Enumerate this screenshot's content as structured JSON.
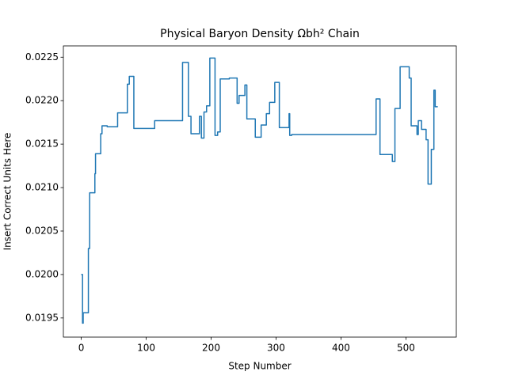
{
  "chart_data": {
    "type": "line",
    "title": "Physical Baryon Density Ωbh² Chain",
    "xlabel": "Step Number",
    "ylabel": "Insert Correct Units Here",
    "color": "#1f77b4",
    "x": [
      0,
      2,
      2,
      3,
      3,
      11,
      11,
      13,
      13,
      21,
      21,
      22,
      22,
      30,
      30,
      32,
      32,
      40,
      40,
      56,
      56,
      71,
      71,
      74,
      74,
      81,
      81,
      113,
      113,
      156,
      156,
      165,
      165,
      169,
      169,
      182,
      182,
      185,
      185,
      189,
      189,
      193,
      193,
      198,
      198,
      206,
      206,
      210,
      210,
      214,
      214,
      228,
      228,
      240,
      240,
      243,
      243,
      252,
      252,
      255,
      255,
      268,
      268,
      277,
      277,
      285,
      285,
      290,
      290,
      298,
      298,
      305,
      305,
      320,
      320,
      321,
      321,
      324,
      324,
      454,
      454,
      460,
      460,
      479,
      479,
      483,
      483,
      491,
      491,
      505,
      505,
      508,
      508,
      517,
      517,
      519,
      519,
      524,
      524,
      531,
      531,
      534,
      534,
      539,
      539,
      543,
      543,
      545,
      545,
      549
    ],
    "values": [
      0.02,
      0.02,
      0.01944,
      0.01944,
      0.01956,
      0.01956,
      0.0203,
      0.0203,
      0.02094,
      0.02094,
      0.02116,
      0.02116,
      0.02139,
      0.02139,
      0.02162,
      0.02162,
      0.02171,
      0.02171,
      0.0217,
      0.0217,
      0.02186,
      0.02186,
      0.02219,
      0.02219,
      0.02228,
      0.02228,
      0.02168,
      0.02168,
      0.02177,
      0.02177,
      0.02244,
      0.02244,
      0.02182,
      0.02182,
      0.02162,
      0.02162,
      0.02182,
      0.02182,
      0.02157,
      0.02157,
      0.02187,
      0.02187,
      0.02194,
      0.02194,
      0.02249,
      0.02249,
      0.0216,
      0.0216,
      0.02164,
      0.02164,
      0.02225,
      0.02225,
      0.02226,
      0.02226,
      0.02197,
      0.02197,
      0.02206,
      0.02206,
      0.02218,
      0.02218,
      0.02179,
      0.02179,
      0.02158,
      0.02158,
      0.02172,
      0.02172,
      0.02185,
      0.02185,
      0.02198,
      0.02198,
      0.02221,
      0.02221,
      0.02169,
      0.02169,
      0.02185,
      0.02185,
      0.0216,
      0.0216,
      0.02161,
      0.02161,
      0.02202,
      0.02202,
      0.02138,
      0.02138,
      0.0213,
      0.0213,
      0.02191,
      0.02191,
      0.02239,
      0.02239,
      0.02226,
      0.02226,
      0.02171,
      0.02171,
      0.02161,
      0.02161,
      0.02177,
      0.02177,
      0.02167,
      0.02167,
      0.02155,
      0.02155,
      0.02104,
      0.02104,
      0.02144,
      0.02144,
      0.02212,
      0.02212,
      0.02193,
      0.02193
    ],
    "xlim": [
      -27.5,
      577.5
    ],
    "ylim": [
      0.01928,
      0.02263
    ],
    "xticks": [
      0,
      100,
      200,
      300,
      400,
      500
    ],
    "yticks": [
      0.0195,
      {
        "value": 0.02,
        "label": "0.0200"
      },
      0.0205,
      {
        "value": 0.021,
        "label": "0.0210"
      },
      0.0215,
      {
        "value": 0.022,
        "label": "0.0220"
      },
      0.0225
    ]
  }
}
